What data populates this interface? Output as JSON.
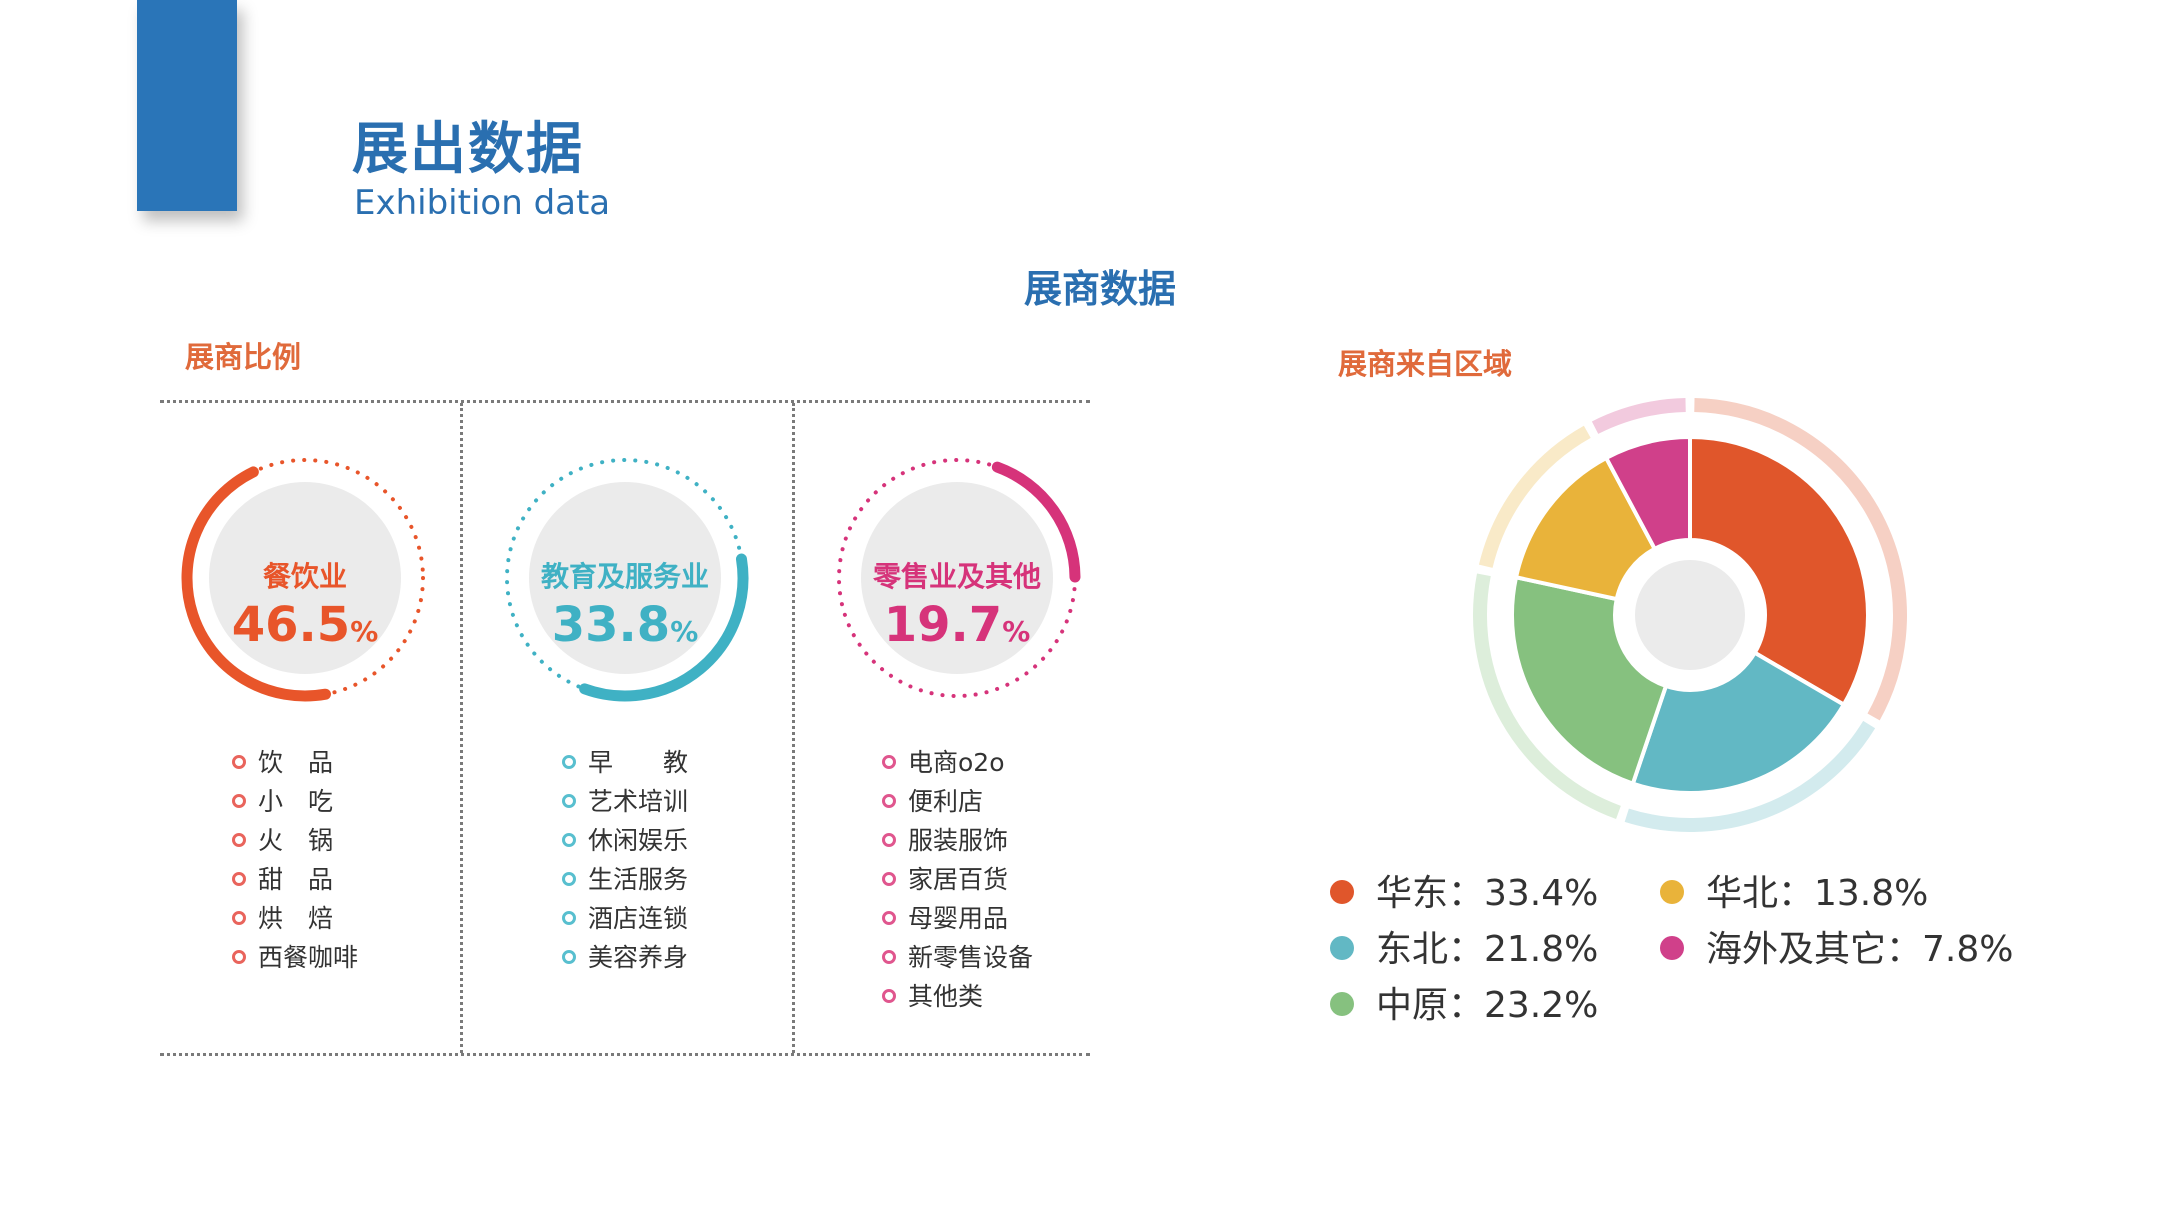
{
  "header": {
    "title": "展出数据",
    "subtitle": "Exhibition data",
    "accent_color": "#2a75b8",
    "title_color": "#2a6fb0",
    "subtitle_color": "#2a6fb0"
  },
  "section_title": "展商数据",
  "section_title_color": "#2a6fb0",
  "left_panel": {
    "title": "展商比例",
    "title_color": "#e06a3b",
    "categories": [
      {
        "name": "餐饮业",
        "percent_value": "46.5",
        "percent_sign": "%",
        "color": "#e8552a",
        "arc_fraction": 0.465,
        "items": [
          "饮　品",
          "小　吃",
          "火　锅",
          "甜　品",
          "烘　焙",
          "西餐咖啡"
        ],
        "bullet_color": "#e9645c"
      },
      {
        "name": "教育及服务业",
        "percent_value": "33.8",
        "percent_sign": "%",
        "color": "#3fb1c4",
        "arc_fraction": 0.338,
        "items": [
          "早　　教",
          "艺术培训",
          "休闲娱乐",
          "生活服务",
          "酒店连锁",
          "美容养身"
        ],
        "bullet_color": "#58bfcf"
      },
      {
        "name": "零售业及其他",
        "percent_value": "19.7",
        "percent_sign": "%",
        "color": "#d6337a",
        "arc_fraction": 0.197,
        "items": [
          "电商o2o",
          "便利店",
          "服装服饰",
          "家居百货",
          "母婴用品",
          "新零售设备",
          "其他类"
        ],
        "bullet_color": "#e0568e"
      }
    ]
  },
  "right_panel": {
    "title": "展商来自区域",
    "title_color": "#e06a3b",
    "legend": [
      {
        "label": "华东：33.4%",
        "color": "#e0562b"
      },
      {
        "label": "华北：13.8%",
        "color": "#e9b33a"
      },
      {
        "label": "东北：21.8%",
        "color": "#62b8c4"
      },
      {
        "label": "海外及其它：7.8%",
        "color": "#d0408a"
      },
      {
        "label": "中原：23.2%",
        "color": "#86c17f"
      }
    ]
  },
  "chart_data": {
    "type": "pie",
    "title": "展商来自区域",
    "labels": [
      "华东",
      "东北",
      "中原",
      "华北",
      "海外及其它"
    ],
    "values": [
      33.4,
      21.8,
      23.2,
      13.8,
      7.8
    ],
    "colors": [
      "#e0562b",
      "#62b8c4",
      "#86c17f",
      "#e9b33a",
      "#d0408a"
    ],
    "unit": "%"
  }
}
